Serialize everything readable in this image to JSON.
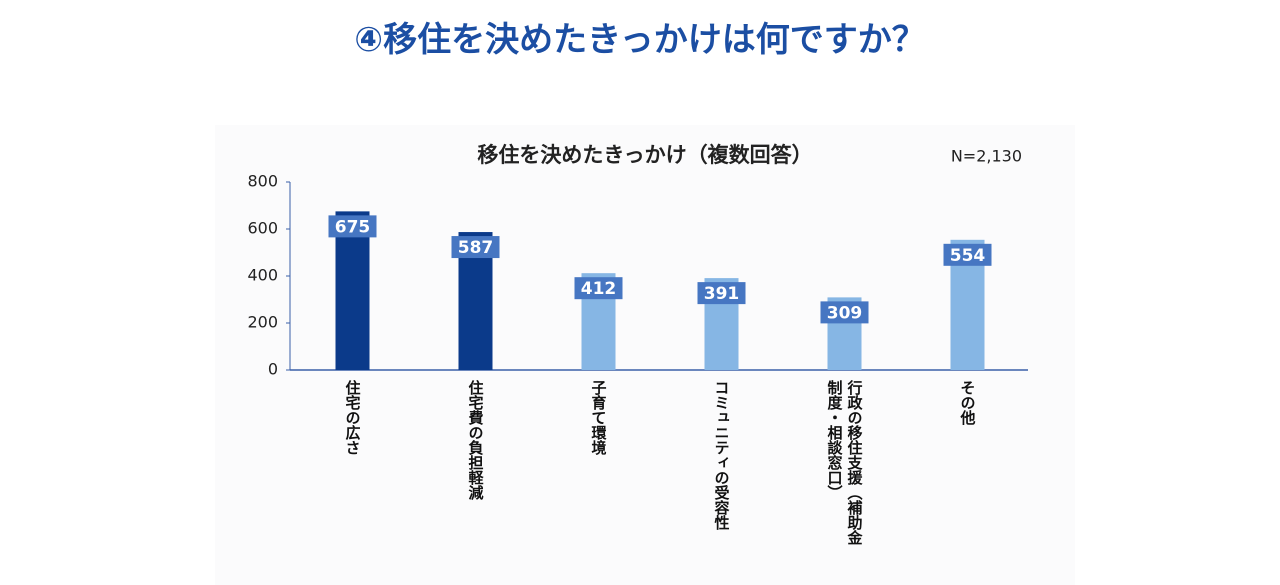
{
  "heading": "④移住を決めたきっかけは何ですか？",
  "chart_data": {
    "type": "bar",
    "title": "移住を決めたきっかけ（複数回答）",
    "note": "N=2,130",
    "categories": [
      "住宅の広さ",
      "住宅費の負担軽減",
      "子育て環境",
      "コミュニティの受容性",
      "行政の移住支援（補助金制度・相談窓口）",
      "その他"
    ],
    "values": [
      675,
      587,
      412,
      391,
      309,
      554
    ],
    "colors": [
      "#0b3a8a",
      "#0b3a8a",
      "#86b6e4",
      "#86b6e4",
      "#86b6e4",
      "#86b6e4"
    ],
    "label_color": "#4676c2",
    "ylim": [
      0,
      800
    ],
    "yticks": [
      0,
      200,
      400,
      600,
      800
    ],
    "grid": false
  }
}
